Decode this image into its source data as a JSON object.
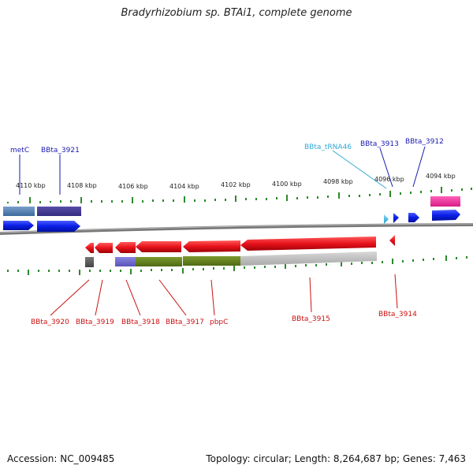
{
  "title": "Bradyrhizobium sp. BTAi1, complete genome",
  "footer": {
    "accession": "Accession: NC_009485",
    "topology": "Topology: circular; Length: 8,264,687 bp; Genes: 7,463"
  },
  "ruler_ticks": [
    "4110 kbp",
    "4108 kbp",
    "4106 kbp",
    "4104 kbp",
    "4102 kbp",
    "4100 kbp",
    "4098 kbp",
    "4096 kbp",
    "4094 kbp"
  ],
  "colors": {
    "forward": "#0a1ee6",
    "reverse": "#e8121b",
    "trna": "#3fb5e8",
    "forward_label": "#1a1ab0",
    "reverse_label": "#cc1111",
    "trna_label": "#33a8d6",
    "tick": "#2a8a2a",
    "backbone": "#7a7a7a"
  },
  "top_labels": [
    "metC",
    "BBta_3921",
    "BBta_tRNA46",
    "BBta_3913",
    "BBta_3912"
  ],
  "bottom_labels": [
    "BBta_3920",
    "BBta_3919",
    "BBta_3918",
    "BBta_3917",
    "pbpC",
    "BBta_3915",
    "BBta_3914"
  ]
}
